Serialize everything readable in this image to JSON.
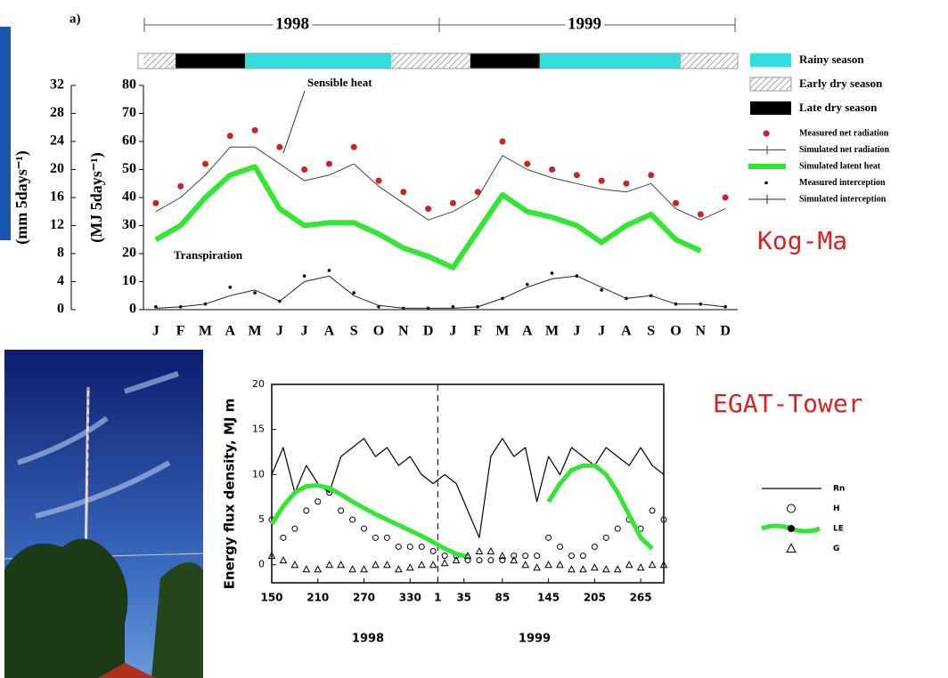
{
  "chart_data": [
    {
      "type": "line",
      "panel": "a)",
      "years": [
        "1998",
        "1999"
      ],
      "categories": [
        "J",
        "F",
        "M",
        "A",
        "M",
        "J",
        "J",
        "A",
        "S",
        "O",
        "N",
        "D",
        "J",
        "F",
        "M",
        "A",
        "M",
        "J",
        "J",
        "A",
        "S",
        "O",
        "N",
        "D"
      ],
      "ylim": [
        0,
        80
      ],
      "yticks": [
        0,
        10,
        20,
        30,
        40,
        50,
        60,
        70,
        80
      ],
      "ylabel": "(MJ 5days⁻¹)",
      "y2lim": [
        0,
        32
      ],
      "y2ticks": [
        0,
        4,
        8,
        12,
        16,
        20,
        24,
        28,
        32
      ],
      "y2label": "(mm 5days⁻¹)",
      "annotations": [
        "Sensible heat",
        "Transpiration"
      ],
      "site": "Kog-Ma",
      "seasons": [
        {
          "name": "Rainy season",
          "color": "#33dede",
          "spans": [
            [
              4.1,
              10
            ],
            [
              16,
              21.7
            ]
          ]
        },
        {
          "name": "Early dry season",
          "color": "hatch",
          "spans": [
            [
              0,
              1.3
            ],
            [
              10,
              13.2
            ],
            [
              21.7,
              24
            ]
          ]
        },
        {
          "name": "Late dry season",
          "color": "#000000",
          "spans": [
            [
              1.3,
              4.1
            ],
            [
              13.2,
              16
            ]
          ]
        }
      ],
      "series": [
        {
          "name": "Measured net radiation",
          "color": "#cc2222",
          "style": "markers",
          "values": [
            38,
            44,
            52,
            62,
            64,
            58,
            50,
            52,
            58,
            46,
            42,
            36,
            38,
            42,
            60,
            52,
            50,
            48,
            46,
            45,
            48,
            38,
            34,
            40
          ]
        },
        {
          "name": "Simulated net radiation",
          "color": "#444444",
          "style": "line",
          "values": [
            35,
            40,
            48,
            58,
            58,
            52,
            46,
            48,
            52,
            44,
            38,
            32,
            35,
            40,
            55,
            50,
            47,
            45,
            43,
            42,
            45,
            36,
            32,
            36
          ]
        },
        {
          "name": "Simulated latent heat",
          "color": "#33e633",
          "style": "thick",
          "values": [
            25,
            30,
            40,
            48,
            51,
            36,
            30,
            31,
            31,
            27,
            22,
            19,
            15,
            28,
            41,
            35,
            33,
            30,
            24,
            30,
            34,
            25,
            21,
            null
          ]
        },
        {
          "name": "Measured interception",
          "color": "#000000",
          "style": "dots",
          "values": [
            1,
            1,
            2,
            8,
            6,
            3,
            12,
            14,
            6,
            1,
            0.5,
            0.5,
            1,
            1,
            4,
            9,
            13,
            12,
            7,
            4,
            5,
            2,
            2,
            1
          ]
        },
        {
          "name": "Simulated interception",
          "color": "#222222",
          "style": "line",
          "values": [
            0.5,
            1,
            2,
            5,
            7,
            3,
            10,
            12,
            5,
            1.5,
            0.5,
            0.5,
            0.5,
            1,
            4,
            8,
            11,
            12,
            8,
            4,
            5,
            2,
            2,
            1
          ]
        }
      ]
    },
    {
      "type": "line",
      "years": [
        "1998",
        "1999"
      ],
      "site": "EGAT-Tower",
      "ylabel": "Energy flux density, MJ m",
      "x": [
        150,
        165,
        180,
        195,
        210,
        225,
        240,
        255,
        270,
        285,
        300,
        315,
        330,
        345,
        360,
        375,
        390,
        405,
        420,
        435,
        450,
        465,
        480,
        495,
        510,
        525,
        540,
        555,
        570,
        585,
        600,
        615,
        630,
        645,
        660
      ],
      "xlim": [
        150,
        660
      ],
      "xticks": [
        150,
        210,
        270,
        330,
        {
          "value": 366,
          "label": "1"
        },
        {
          "value": 400,
          "label": "35"
        },
        {
          "value": 450,
          "label": "85"
        },
        {
          "value": 510,
          "label": "145"
        },
        {
          "value": 570,
          "label": "205"
        },
        {
          "value": 630,
          "label": "265"
        }
      ],
      "ylim": [
        -2,
        20
      ],
      "yticks": [
        0,
        5,
        10,
        15,
        20
      ],
      "series": [
        {
          "name": "Rn",
          "color": "#000000",
          "style": "line",
          "values": [
            10,
            13,
            8,
            11,
            9,
            8,
            12,
            13,
            14,
            12,
            13,
            11,
            12,
            10,
            9,
            10,
            9,
            6,
            3,
            12,
            14,
            12,
            13,
            7,
            12,
            10,
            13,
            12,
            11,
            13,
            12,
            11,
            13,
            11,
            10
          ]
        },
        {
          "name": "H",
          "color": "#000000",
          "style": "circles",
          "values": [
            5,
            3,
            4,
            6,
            7,
            8,
            6,
            5,
            4,
            3,
            3,
            2,
            2,
            2,
            1.5,
            1,
            1,
            0.5,
            0.5,
            0.5,
            0.5,
            1,
            1,
            1,
            3,
            2,
            1,
            1,
            2,
            3,
            4,
            5,
            4,
            6,
            5
          ]
        },
        {
          "name": "LE",
          "color": "#33e633",
          "style": "thick",
          "values": [
            4.5,
            6.5,
            8,
            8.7,
            8.8,
            8.5,
            7.8,
            7,
            6.3,
            5.6,
            5,
            4.4,
            3.8,
            3.2,
            2.5,
            1.8,
            1.2,
            0.9,
            null,
            null,
            null,
            null,
            null,
            null,
            7,
            9,
            10.5,
            11,
            11,
            10,
            8,
            5.5,
            3,
            1.8,
            null
          ]
        },
        {
          "name": "G",
          "color": "#000000",
          "style": "triangles",
          "values": [
            1,
            0.5,
            0,
            -0.5,
            -0.5,
            0,
            0,
            -0.5,
            -0.5,
            0,
            0,
            -0.5,
            -0.3,
            0,
            0,
            0.2,
            0.5,
            1,
            1.5,
            1.5,
            1,
            0.5,
            0,
            -0.3,
            0,
            0,
            -0.5,
            -0.5,
            -0.3,
            -0.5,
            -0.5,
            0,
            -0.3,
            0,
            0
          ]
        }
      ]
    }
  ]
}
